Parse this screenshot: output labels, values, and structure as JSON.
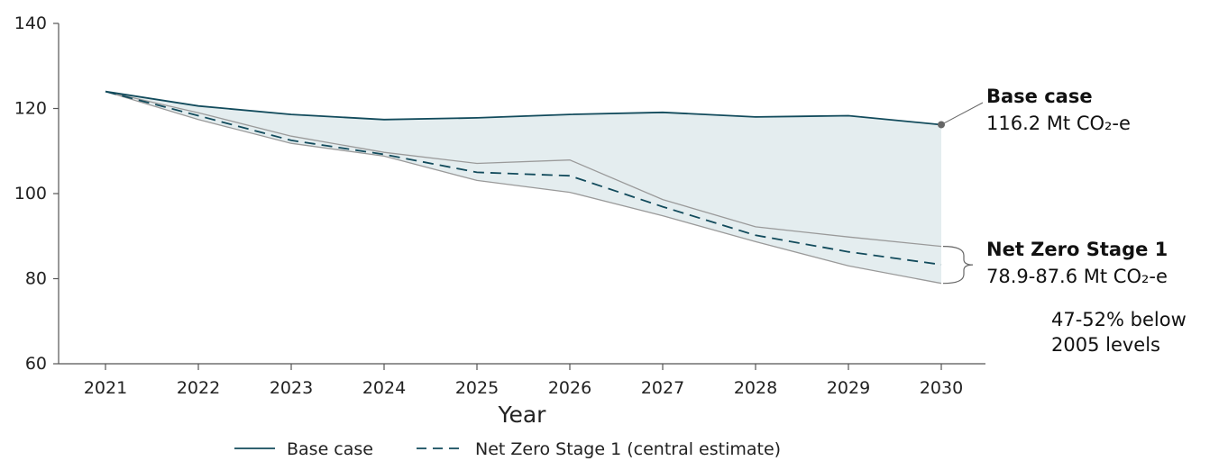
{
  "chart_data": {
    "type": "line",
    "xlabel": "Year",
    "ylabel": "",
    "ylim": [
      60,
      140
    ],
    "yticks": [
      "60",
      "80",
      "100",
      "120",
      "140"
    ],
    "categories": [
      "2021",
      "2022",
      "2023",
      "2024",
      "2025",
      "2026",
      "2027",
      "2028",
      "2029",
      "2030"
    ],
    "series": [
      {
        "name": "Base case",
        "style": "solid",
        "color": "#124b5c",
        "values": [
          124.0,
          120.6,
          118.6,
          117.4,
          117.8,
          118.6,
          119.1,
          118.0,
          118.3,
          116.2
        ]
      },
      {
        "name": "Net Zero Stage 1 (central estimate)",
        "style": "dashed",
        "color": "#124b5c",
        "values": [
          124.0,
          118.3,
          112.5,
          109.2,
          105.0,
          104.2,
          96.9,
          90.2,
          86.3,
          83.3
        ]
      }
    ],
    "range_band": {
      "upper": [
        124.0,
        119.0,
        113.5,
        109.7,
        107.1,
        107.9,
        98.6,
        92.2,
        89.8,
        87.6
      ],
      "lower": [
        124.0,
        117.4,
        111.8,
        108.8,
        103.1,
        100.3,
        94.8,
        88.7,
        83.0,
        78.9
      ],
      "color": "#9a9a9a"
    },
    "gap_fill_color": "#e4edef",
    "legend_position": "bottom",
    "grid": false,
    "annotations": {
      "base_title": "Base case",
      "base_value": "116.2 Mt CO₂-e",
      "nz_title": "Net Zero Stage 1",
      "nz_value": "78.9-87.6 Mt CO₂-e",
      "nz_note_line1": "47-52% below",
      "nz_note_line2": "2005 levels"
    }
  }
}
